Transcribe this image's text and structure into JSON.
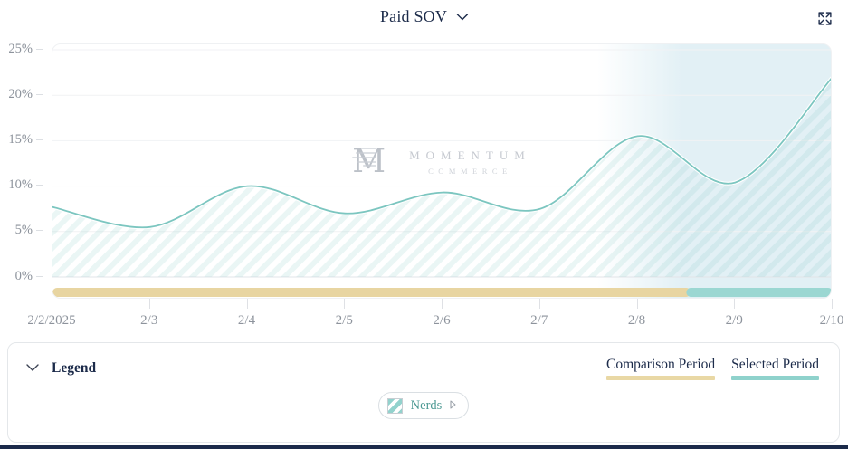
{
  "header": {
    "title": "Paid SOV"
  },
  "y_axis": {
    "ticks": [
      "25%",
      "20%",
      "15%",
      "10%",
      "5%",
      "0%"
    ]
  },
  "x_axis": {
    "ticks": [
      "2/2/2025",
      "2/3",
      "2/4",
      "2/5",
      "2/6",
      "2/7",
      "2/8",
      "2/9",
      "2/10"
    ]
  },
  "watermark": {
    "monogram": "M",
    "name": "MOMENTUM",
    "subname": "COMMERCE"
  },
  "legend": {
    "title": "Legend",
    "comparison_label": "Comparison Period",
    "selected_label": "Selected Period",
    "series_chip_label": "Nerds"
  },
  "chart_data": {
    "type": "area",
    "title": "Paid SOV",
    "x": [
      "2/2/2025",
      "2/3",
      "2/4",
      "2/5",
      "2/6",
      "2/7",
      "2/8",
      "2/9",
      "2/10"
    ],
    "series": [
      {
        "name": "Nerds",
        "values": [
          7.7,
          5.5,
          10.0,
          7.0,
          9.3,
          7.5,
          15.5,
          10.4,
          22.0
        ]
      }
    ],
    "ylim": [
      0,
      25
    ],
    "y_unit": "%",
    "grid": true,
    "legend_position": "bottom",
    "line_color": "#7cc6c0",
    "hatch_color": "rgba(127,199,193,0.16)",
    "selected_band_color": "#e2f0f5",
    "comparison_period": {
      "fraction_of_axis": 0.8125,
      "color": "#e8d5a1"
    },
    "selected_period": {
      "color": "#9bd7d2"
    }
  }
}
